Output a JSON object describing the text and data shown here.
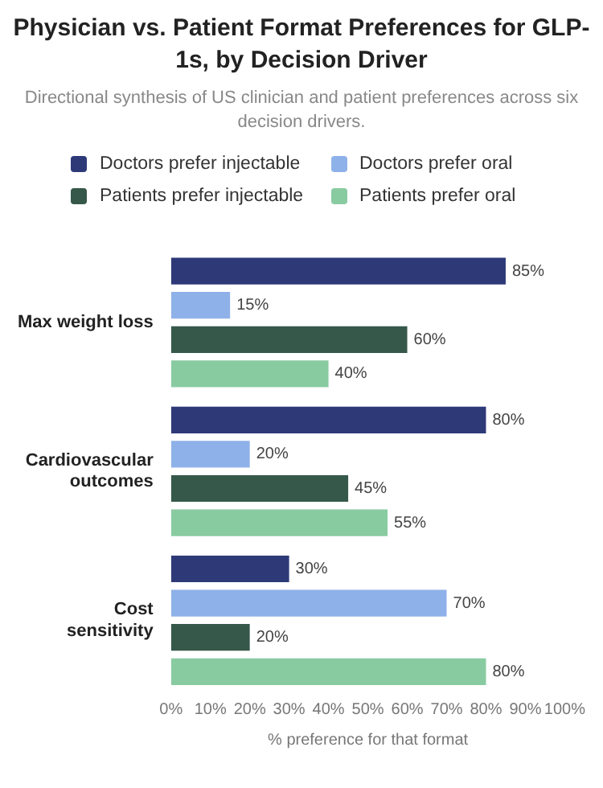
{
  "chart_data": {
    "type": "bar",
    "orientation": "horizontal",
    "title": "Physician vs. Patient Format Preferences for GLP-1s, by Decision Driver",
    "subtitle": "Directional synthesis of US clinician and patient preferences across six decision drivers.",
    "xlabel": "% preference for that format",
    "categories": [
      "Max weight loss",
      "Cardiovascular outcomes",
      "Cost sensitivity"
    ],
    "series": [
      {
        "name": "Doctors prefer injectable",
        "color": "#2e3a78",
        "values": [
          85,
          80,
          30
        ],
        "value_labels": [
          "85%",
          "80%",
          "30%"
        ]
      },
      {
        "name": "Doctors prefer oral",
        "color": "#8fb1e9",
        "values": [
          15,
          20,
          70
        ],
        "value_labels": [
          "15%",
          "20%",
          "70%"
        ]
      },
      {
        "name": "Patients prefer injectable",
        "color": "#35584a",
        "values": [
          60,
          45,
          20
        ],
        "value_labels": [
          "60%",
          "45%",
          "20%"
        ]
      },
      {
        "name": "Patients prefer oral",
        "color": "#89cba1",
        "values": [
          40,
          55,
          80
        ],
        "value_labels": [
          "40%",
          "55%",
          "80%"
        ]
      }
    ],
    "xlim": [
      0,
      100
    ],
    "xticks": [
      {
        "value": 0,
        "label": "0%"
      },
      {
        "value": 10,
        "label": "10%"
      },
      {
        "value": 20,
        "label": "20%"
      },
      {
        "value": 30,
        "label": "30%"
      },
      {
        "value": 40,
        "label": "40%"
      },
      {
        "value": 50,
        "label": "50%"
      },
      {
        "value": 60,
        "label": "60%"
      },
      {
        "value": 70,
        "label": "70%"
      },
      {
        "value": 80,
        "label": "80%"
      },
      {
        "value": 90,
        "label": "90%"
      },
      {
        "value": 100,
        "label": "100%"
      }
    ],
    "legend": "top",
    "grid": false
  }
}
